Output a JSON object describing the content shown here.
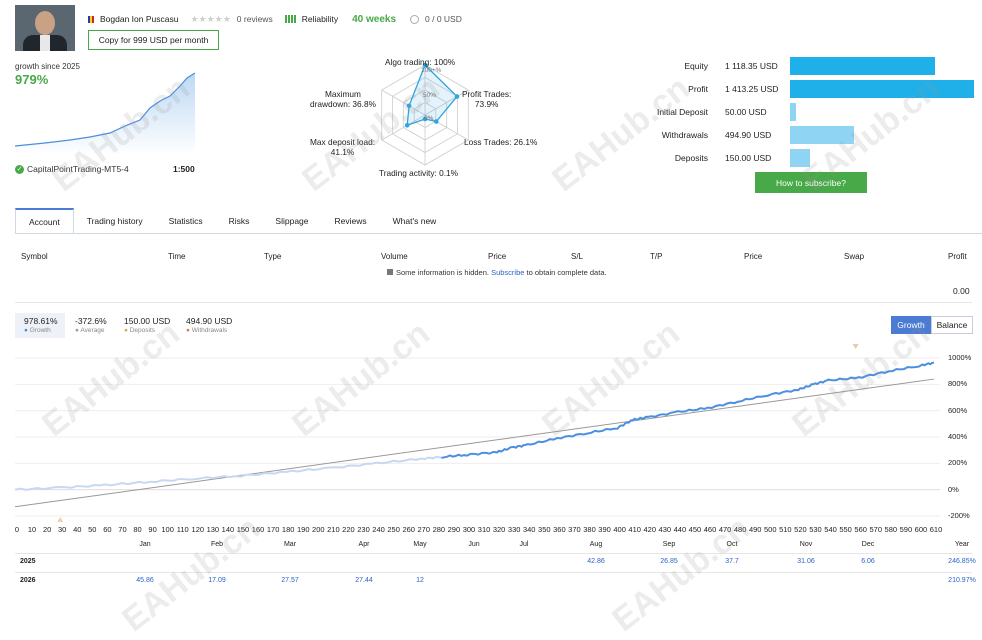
{
  "header": {
    "name": "Bogdan Ion Puscasu",
    "stars": "★★★★★",
    "reviews": "0 reviews",
    "reliability": "Reliability",
    "weeks": "40 weeks",
    "subscribers": "0 / 0 USD",
    "copy_button": "Copy for 999 USD per month"
  },
  "summary": {
    "growth_label": "growth since 2025",
    "growth_value": "979%",
    "broker": "CapitalPointTrading-MT5-4",
    "leverage": "1:500"
  },
  "radar": {
    "algo": "Algo trading: 100%",
    "profit_l1": "Profit Trades:",
    "profit_l2": "73.9%",
    "loss": "Loss Trades: 26.1%",
    "activity": "Trading activity: 0.1%",
    "deposit_l1": "Max deposit load:",
    "deposit_l2": "41.1%",
    "drawdown_l1": "Maximum",
    "drawdown_l2": "drawdown: 36.8%",
    "ring100": "100+%",
    "ring50": "50%",
    "ring0": "0%",
    "values": [
      1.0,
      0.739,
      0.261,
      0.001,
      0.411,
      0.368
    ]
  },
  "stats": [
    {
      "label": "Equity",
      "value": "1 118.35 USD",
      "fraction": 0.79
    },
    {
      "label": "Profit",
      "value": "1 413.25 USD",
      "fraction": 1.0
    },
    {
      "label": "Initial Deposit",
      "value": "50.00 USD",
      "fraction": 0.035
    },
    {
      "label": "Withdrawals",
      "value": "494.90 USD",
      "fraction": 0.35
    },
    {
      "label": "Deposits",
      "value": "150.00 USD",
      "fraction": 0.106
    }
  ],
  "subscribe_button": "How to subscribe?",
  "tabs": [
    "Account",
    "Trading history",
    "Statistics",
    "Risks",
    "Slippage",
    "Reviews",
    "What's new"
  ],
  "table": {
    "headers": [
      "Symbol",
      "Time",
      "Type",
      "Volume",
      "Price",
      "S/L",
      "T/P",
      "Price",
      "Swap",
      "Profit"
    ],
    "hidden_pre": "Some information is hidden.",
    "hidden_link": "Subscribe",
    "hidden_post": "to obtain complete data.",
    "profit_total": "0.00"
  },
  "legend": [
    {
      "value": "978.61%",
      "label": "Growth",
      "color": "#4b8fe0"
    },
    {
      "value": "-372.6%",
      "label": "Average",
      "color": "#999999"
    },
    {
      "value": "150.00 USD",
      "label": "Deposits",
      "color": "#d4a94a"
    },
    {
      "value": "494.90 USD",
      "label": "Withdrawals",
      "color": "#e07a4a"
    }
  ],
  "chart_buttons": {
    "growth": "Growth",
    "balance": "Balance"
  },
  "chart_data": {
    "type": "line",
    "y_ticks": [
      "1000%",
      "800%",
      "600%",
      "400%",
      "200%",
      "0%",
      "-200%"
    ],
    "x_ticks": [
      "0",
      "10",
      "20",
      "30",
      "40",
      "50",
      "60",
      "70",
      "80",
      "90",
      "100",
      "110",
      "120",
      "130",
      "140",
      "150",
      "160",
      "170",
      "180",
      "190",
      "200",
      "210",
      "220",
      "230",
      "240",
      "250",
      "260",
      "270",
      "280",
      "290",
      "300",
      "310",
      "320",
      "330",
      "340",
      "350",
      "360",
      "370",
      "380",
      "390",
      "400",
      "410",
      "420",
      "430",
      "440",
      "450",
      "460",
      "470",
      "480",
      "490",
      "500",
      "510",
      "520",
      "530",
      "540",
      "550",
      "560",
      "570",
      "580",
      "590",
      "600",
      "610"
    ],
    "xlim": [
      0,
      610
    ],
    "ylim": [
      -200,
      1000
    ],
    "series": [
      {
        "name": "Growth",
        "x": [
          0,
          30,
          60,
          90,
          120,
          150,
          180,
          210,
          240,
          270,
          285,
          300,
          320,
          330,
          340,
          360,
          380,
          400,
          410,
          420,
          440,
          460,
          480,
          500,
          520,
          530,
          540,
          560,
          580,
          600,
          610
        ],
        "y": [
          0,
          15,
          35,
          60,
          85,
          105,
          135,
          165,
          200,
          235,
          250,
          265,
          285,
          320,
          340,
          390,
          430,
          470,
          530,
          550,
          590,
          620,
          670,
          720,
          760,
          800,
          830,
          850,
          900,
          940,
          965
        ]
      },
      {
        "name": "Average",
        "x": [
          0,
          610
        ],
        "y": [
          -130,
          840
        ]
      }
    ]
  },
  "months": [
    "Jan",
    "Feb",
    "Mar",
    "Apr",
    "May",
    "Jun",
    "Jul",
    "Aug",
    "Sep",
    "Oct",
    "Nov",
    "Dec",
    "Year"
  ],
  "years": [
    {
      "year": "2025",
      "values": [
        "",
        "",
        "",
        "",
        "",
        "",
        "",
        "42.86",
        "26.85",
        "37.7",
        "31.06",
        "6.06",
        "246.85%"
      ]
    },
    {
      "year": "2026",
      "values": [
        "45.86",
        "17.09",
        "27.57",
        "27.44",
        "12",
        "",
        "",
        "",
        "",
        "",
        "",
        "",
        "210.97%"
      ]
    }
  ],
  "watermark": "EAHub.cn"
}
